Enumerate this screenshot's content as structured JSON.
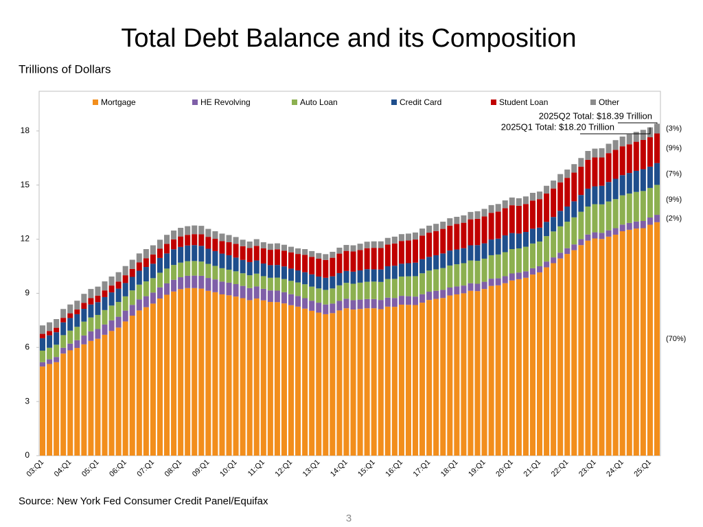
{
  "chart_data": {
    "type": "bar",
    "stacked": true,
    "title": "Total Debt Balance and its Composition",
    "subtitle": "Trillions of Dollars",
    "source": "Source: New York Fed Consumer Credit Panel/Equifax",
    "page_number": "3",
    "annotations": [
      "2025Q2 Total: $18.39 Trillion",
      "2025Q1 Total: $18.20 Trillion"
    ],
    "ylim": [
      0,
      20.2
    ],
    "yticks": [
      0,
      3,
      6,
      9,
      12,
      15,
      18
    ],
    "categories": [
      "03:Q1",
      null,
      null,
      null,
      "04:Q1",
      null,
      null,
      null,
      "05:Q1",
      null,
      null,
      null,
      "06:Q1",
      null,
      null,
      null,
      "07:Q1",
      null,
      null,
      null,
      "08:Q1",
      null,
      null,
      null,
      "09:Q1",
      null,
      null,
      null,
      "10:Q1",
      null,
      null,
      null,
      "11:Q1",
      null,
      null,
      null,
      "12:Q1",
      null,
      null,
      null,
      "13:Q1",
      null,
      null,
      null,
      "14:Q1",
      null,
      null,
      null,
      "15:Q1",
      null,
      null,
      null,
      "16:Q1",
      null,
      null,
      null,
      "17:Q1",
      null,
      null,
      null,
      "18:Q1",
      null,
      null,
      null,
      "19:Q1",
      null,
      null,
      null,
      "20:Q1",
      null,
      null,
      null,
      "21:Q1",
      null,
      null,
      null,
      "22:Q1",
      null,
      null,
      null,
      "23:Q1",
      null,
      null,
      null,
      "24:Q1",
      null,
      null,
      null,
      "25:Q1",
      null
    ],
    "series": [
      {
        "name": "Mortgage",
        "color": "#f28e1c",
        "share_label": "(70%)",
        "values": [
          4.94,
          5.08,
          5.18,
          5.66,
          5.84,
          5.97,
          6.17,
          6.36,
          6.48,
          6.7,
          6.91,
          7.1,
          7.44,
          7.76,
          8.05,
          8.23,
          8.43,
          8.71,
          8.92,
          9.1,
          9.23,
          9.29,
          9.29,
          9.26,
          9.14,
          9.06,
          8.94,
          8.89,
          8.82,
          8.73,
          8.62,
          8.71,
          8.61,
          8.52,
          8.51,
          8.44,
          8.34,
          8.26,
          8.15,
          8.03,
          7.93,
          7.84,
          7.9,
          8.05,
          8.17,
          8.1,
          8.13,
          8.17,
          8.17,
          8.12,
          8.26,
          8.25,
          8.37,
          8.36,
          8.35,
          8.48,
          8.63,
          8.69,
          8.74,
          8.88,
          8.94,
          9.0,
          9.14,
          9.12,
          9.24,
          9.41,
          9.44,
          9.56,
          9.71,
          9.78,
          9.86,
          10.04,
          10.16,
          10.44,
          10.67,
          10.93,
          11.18,
          11.39,
          11.67,
          11.92,
          12.04,
          12.01,
          12.14,
          12.25,
          12.44,
          12.52,
          12.59,
          12.61,
          12.8,
          12.94
        ]
      },
      {
        "name": "HE Revolving",
        "color": "#7f5fa8",
        "share_label": "(2%)",
        "values": [
          0.24,
          0.26,
          0.29,
          0.32,
          0.37,
          0.43,
          0.49,
          0.53,
          0.54,
          0.57,
          0.59,
          0.6,
          0.6,
          0.6,
          0.61,
          0.61,
          0.61,
          0.62,
          0.63,
          0.65,
          0.66,
          0.68,
          0.69,
          0.71,
          0.71,
          0.71,
          0.71,
          0.7,
          0.69,
          0.68,
          0.67,
          0.67,
          0.64,
          0.64,
          0.64,
          0.62,
          0.61,
          0.59,
          0.58,
          0.56,
          0.55,
          0.54,
          0.53,
          0.53,
          0.53,
          0.52,
          0.52,
          0.51,
          0.51,
          0.51,
          0.5,
          0.49,
          0.49,
          0.48,
          0.47,
          0.47,
          0.46,
          0.45,
          0.45,
          0.44,
          0.44,
          0.43,
          0.42,
          0.41,
          0.4,
          0.4,
          0.39,
          0.39,
          0.39,
          0.37,
          0.36,
          0.35,
          0.34,
          0.32,
          0.32,
          0.32,
          0.32,
          0.32,
          0.33,
          0.34,
          0.34,
          0.34,
          0.35,
          0.36,
          0.37,
          0.38,
          0.39,
          0.4,
          0.4,
          0.41
        ]
      },
      {
        "name": "Auto Loan",
        "color": "#8cb050",
        "share_label": "(9%)",
        "values": [
          0.64,
          0.64,
          0.68,
          0.7,
          0.72,
          0.74,
          0.77,
          0.77,
          0.78,
          0.8,
          0.82,
          0.82,
          0.79,
          0.8,
          0.82,
          0.82,
          0.8,
          0.81,
          0.82,
          0.82,
          0.81,
          0.81,
          0.81,
          0.79,
          0.78,
          0.75,
          0.74,
          0.72,
          0.71,
          0.7,
          0.71,
          0.71,
          0.7,
          0.7,
          0.72,
          0.73,
          0.74,
          0.75,
          0.77,
          0.78,
          0.79,
          0.81,
          0.84,
          0.86,
          0.88,
          0.91,
          0.94,
          0.96,
          0.97,
          1.0,
          1.03,
          1.06,
          1.07,
          1.1,
          1.13,
          1.16,
          1.17,
          1.19,
          1.21,
          1.22,
          1.23,
          1.24,
          1.26,
          1.27,
          1.28,
          1.3,
          1.32,
          1.33,
          1.35,
          1.34,
          1.36,
          1.37,
          1.37,
          1.41,
          1.44,
          1.46,
          1.47,
          1.5,
          1.52,
          1.55,
          1.56,
          1.58,
          1.6,
          1.61,
          1.62,
          1.63,
          1.64,
          1.66,
          1.64,
          1.66
        ]
      },
      {
        "name": "Credit Card",
        "color": "#1f4e8c",
        "share_label": "(7%)",
        "values": [
          0.69,
          0.69,
          0.69,
          0.71,
          0.7,
          0.7,
          0.71,
          0.72,
          0.71,
          0.72,
          0.73,
          0.74,
          0.74,
          0.75,
          0.77,
          0.8,
          0.8,
          0.82,
          0.84,
          0.87,
          0.87,
          0.87,
          0.88,
          0.87,
          0.84,
          0.82,
          0.81,
          0.8,
          0.76,
          0.74,
          0.73,
          0.73,
          0.7,
          0.7,
          0.7,
          0.7,
          0.68,
          0.67,
          0.67,
          0.68,
          0.66,
          0.67,
          0.67,
          0.68,
          0.66,
          0.67,
          0.68,
          0.7,
          0.68,
          0.69,
          0.71,
          0.73,
          0.71,
          0.73,
          0.75,
          0.78,
          0.76,
          0.78,
          0.81,
          0.83,
          0.82,
          0.83,
          0.84,
          0.87,
          0.85,
          0.87,
          0.88,
          0.93,
          0.89,
          0.82,
          0.82,
          0.82,
          0.77,
          0.79,
          0.8,
          0.86,
          0.84,
          0.89,
          0.93,
          0.99,
          0.99,
          1.03,
          1.08,
          1.13,
          1.12,
          1.14,
          1.17,
          1.21,
          1.18,
          1.21
        ]
      },
      {
        "name": "Student Loan",
        "color": "#c00000",
        "share_label": "(9%)",
        "values": [
          0.24,
          0.24,
          0.25,
          0.25,
          0.26,
          0.26,
          0.33,
          0.35,
          0.36,
          0.37,
          0.38,
          0.39,
          0.43,
          0.44,
          0.46,
          0.48,
          0.51,
          0.51,
          0.53,
          0.55,
          0.58,
          0.59,
          0.61,
          0.64,
          0.66,
          0.68,
          0.69,
          0.72,
          0.76,
          0.76,
          0.78,
          0.81,
          0.84,
          0.85,
          0.87,
          0.87,
          0.9,
          0.91,
          0.96,
          0.97,
          0.99,
          0.99,
          1.03,
          1.08,
          1.11,
          1.12,
          1.13,
          1.16,
          1.19,
          1.19,
          1.2,
          1.23,
          1.26,
          1.26,
          1.28,
          1.31,
          1.34,
          1.34,
          1.36,
          1.38,
          1.41,
          1.41,
          1.44,
          1.46,
          1.49,
          1.48,
          1.5,
          1.51,
          1.54,
          1.54,
          1.55,
          1.56,
          1.58,
          1.57,
          1.58,
          1.58,
          1.59,
          1.59,
          1.57,
          1.6,
          1.6,
          1.57,
          1.6,
          1.6,
          1.6,
          1.59,
          1.61,
          1.62,
          1.63,
          1.64
        ]
      },
      {
        "name": "Other",
        "color": "#8c8c8c",
        "share_label": "(3%)",
        "values": [
          0.47,
          0.48,
          0.48,
          0.49,
          0.49,
          0.49,
          0.5,
          0.51,
          0.5,
          0.5,
          0.5,
          0.52,
          0.51,
          0.51,
          0.5,
          0.51,
          0.51,
          0.5,
          0.5,
          0.49,
          0.48,
          0.48,
          0.48,
          0.47,
          0.44,
          0.42,
          0.42,
          0.4,
          0.38,
          0.36,
          0.36,
          0.37,
          0.34,
          0.34,
          0.33,
          0.33,
          0.31,
          0.31,
          0.32,
          0.32,
          0.31,
          0.32,
          0.33,
          0.33,
          0.33,
          0.34,
          0.35,
          0.36,
          0.36,
          0.37,
          0.37,
          0.38,
          0.38,
          0.38,
          0.39,
          0.39,
          0.39,
          0.4,
          0.4,
          0.41,
          0.4,
          0.41,
          0.41,
          0.42,
          0.42,
          0.43,
          0.42,
          0.43,
          0.43,
          0.42,
          0.42,
          0.43,
          0.42,
          0.43,
          0.44,
          0.46,
          0.46,
          0.47,
          0.48,
          0.49,
          0.49,
          0.51,
          0.52,
          0.54,
          0.54,
          0.55,
          0.55,
          0.56,
          0.55,
          0.54
        ]
      }
    ]
  }
}
